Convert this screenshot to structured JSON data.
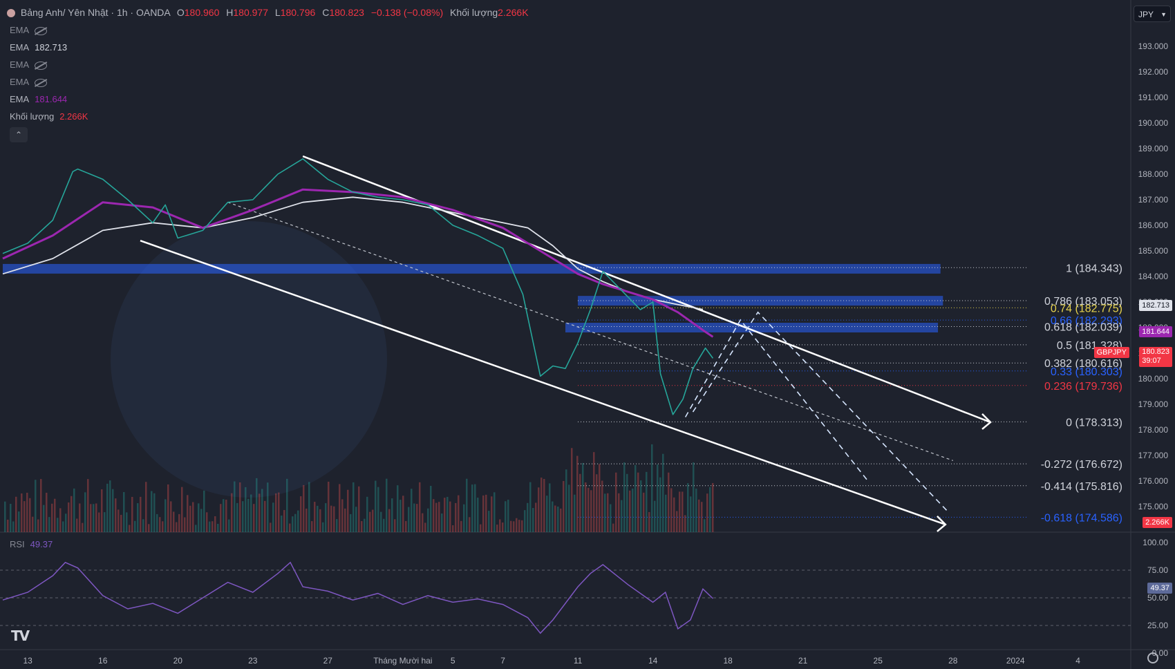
{
  "header": {
    "symbol": "Bảng Anh/ Yên Nhật · 1h · OANDA",
    "o_label": "O",
    "o": "180.960",
    "h_label": "H",
    "h": "180.977",
    "l_label": "L",
    "l": "180.796",
    "c_label": "C",
    "c": "180.823",
    "change": "−0.138 (−0.08%)",
    "vol_label": "Khối lượng",
    "vol": "2.266K"
  },
  "indicators": [
    {
      "name": "EMA",
      "value": "",
      "hidden": true
    },
    {
      "name": "EMA",
      "value": "182.713",
      "hidden": false
    },
    {
      "name": "EMA",
      "value": "",
      "hidden": true
    },
    {
      "name": "EMA",
      "value": "",
      "hidden": true
    },
    {
      "name": "EMA",
      "value": "181.644",
      "hidden": false
    },
    {
      "name": "Khối lượng",
      "value": "2.266K",
      "hidden": false
    }
  ],
  "currency": "JPY",
  "rsi": {
    "label": "RSI",
    "value": "49.37"
  },
  "price_tags": {
    "ema1": "182.713",
    "ema2": "181.644",
    "symbol": "GBPJPY",
    "last": "180.823",
    "countdown": "39:07",
    "volume": "2.266K",
    "rsi": "49.37"
  },
  "colors": {
    "bg": "#1e222d",
    "up": "#26a69a",
    "down": "#ef5350",
    "ema_purple": "#9c27b0",
    "ema_white": "#e0e3eb",
    "zone_blue": "#2962ff",
    "fib_red": "#f23645",
    "fib_blue": "#2962ff",
    "fib_yellow": "#e8d44d"
  },
  "chart_data": {
    "type": "line",
    "y_ticks": [
      193,
      192,
      191,
      190,
      189,
      188,
      187,
      186,
      185,
      184,
      183,
      182,
      181,
      180,
      179,
      178,
      177,
      176,
      175
    ],
    "y_tick_labels": [
      "193.000",
      "192.000",
      "191.000",
      "190.000",
      "189.000",
      "188.000",
      "187.000",
      "186.000",
      "185.000",
      "184.000",
      "183.000",
      "182.000",
      "181.000",
      "180.000",
      "179.000",
      "178.000",
      "177.000",
      "176.000",
      "175.000"
    ],
    "ylim": [
      174,
      194
    ],
    "x_ticks": [
      "13",
      "16",
      "20",
      "23",
      "27",
      "Tháng Mười hai",
      "5",
      "7",
      "11",
      "14",
      "18",
      "21",
      "25",
      "28",
      "2024",
      "4"
    ],
    "x_tick_positions": [
      0,
      3,
      6,
      9,
      12,
      15,
      17,
      19,
      22,
      25,
      28,
      31,
      34,
      37,
      39.5,
      42
    ],
    "xlim": [
      -1,
      44
    ],
    "price": {
      "x": [
        -1,
        0,
        1,
        1.8,
        2,
        3,
        4,
        5,
        5.5,
        6,
        7,
        8,
        9,
        10,
        11,
        11.5,
        12,
        13,
        14,
        15,
        16,
        17,
        18,
        19,
        19.8,
        20.5,
        21,
        21.5,
        22,
        22.5,
        23,
        24,
        24.5,
        25,
        25.3,
        25.8,
        26.2
      ],
      "y": [
        184.9,
        185.3,
        186.2,
        188.1,
        188.2,
        187.8,
        187.0,
        186.1,
        186.8,
        185.5,
        185.8,
        186.9,
        187.0,
        188.0,
        188.6,
        188.2,
        187.8,
        187.3,
        187.1,
        187.0,
        186.8,
        186.0,
        185.6,
        185.1,
        183.3,
        180.1,
        180.5,
        180.4,
        181.4,
        182.7,
        184.2,
        183.2,
        182.7,
        183.0,
        180.2,
        178.6,
        179.2
      ]
    },
    "price_tail": {
      "x": [
        26.2,
        26.6,
        27.1,
        27.4
      ],
      "y": [
        179.2,
        180.4,
        181.2,
        180.8
      ]
    },
    "ema_purple": {
      "x": [
        -1,
        1,
        3,
        5,
        7,
        9,
        11,
        13,
        15,
        17,
        19,
        21,
        22,
        23,
        24,
        25,
        26,
        27,
        27.4
      ],
      "y": [
        184.7,
        185.6,
        186.9,
        186.7,
        185.9,
        186.6,
        187.4,
        187.3,
        187.1,
        186.6,
        185.9,
        184.7,
        184.1,
        183.7,
        183.4,
        183.1,
        182.6,
        181.9,
        181.64
      ]
    },
    "ema_white": {
      "x": [
        -1,
        1,
        3,
        5,
        7,
        9,
        11,
        13,
        15,
        17,
        19,
        20,
        21,
        22,
        23,
        24,
        25,
        26,
        27
      ],
      "y": [
        184.1,
        184.7,
        185.8,
        186.1,
        185.9,
        186.3,
        186.9,
        187.1,
        186.9,
        186.5,
        186.1,
        185.9,
        185.2,
        184.3,
        183.8,
        183.4,
        183.1,
        182.9,
        182.71
      ]
    },
    "fib_levels": [
      {
        "ratio": "1",
        "price": "184.343",
        "y": 184.343
      },
      {
        "ratio": "0.786",
        "price": "183.053",
        "y": 183.053
      },
      {
        "ratio": "0.74",
        "price": "182.775",
        "y": 182.775
      },
      {
        "ratio": "0.66",
        "price": "182.293",
        "y": 182.293
      },
      {
        "ratio": "0.618",
        "price": "182.039",
        "y": 182.039
      },
      {
        "ratio": "0.5",
        "price": "181.328",
        "y": 181.328
      },
      {
        "ratio": "0.382",
        "price": "180.616",
        "y": 180.616
      },
      {
        "ratio": "0.33",
        "price": "180.303",
        "y": 180.303
      },
      {
        "ratio": "0.236",
        "price": "179.736",
        "y": 179.736
      },
      {
        "ratio": "0",
        "price": "178.313",
        "y": 178.313
      },
      {
        "ratio": "-0.272",
        "price": "176.672",
        "y": 176.672
      },
      {
        "ratio": "-0.414",
        "price": "175.816",
        "y": 175.816
      },
      {
        "ratio": "-0.618",
        "price": "174.586",
        "y": 174.586
      }
    ],
    "rsi_ticks": [
      "100.00",
      "75.00",
      "50.00",
      "25.00",
      "0.00"
    ],
    "rsi_levels": [
      100,
      75,
      50,
      25,
      0
    ],
    "rsi_series": {
      "x": [
        -1,
        0,
        1,
        1.5,
        2,
        3,
        4,
        5,
        6,
        7,
        8,
        9,
        10,
        10.5,
        11,
        12,
        13,
        14,
        15,
        16,
        17,
        18,
        19,
        20,
        20.5,
        21,
        22,
        22.5,
        23,
        24,
        25,
        25.5,
        26,
        26.5,
        27,
        27.4
      ],
      "y": [
        48,
        55,
        70,
        82,
        77,
        52,
        40,
        45,
        36,
        50,
        64,
        55,
        72,
        82,
        60,
        56,
        48,
        54,
        44,
        52,
        46,
        49,
        44,
        32,
        18,
        30,
        60,
        72,
        80,
        62,
        46,
        55,
        22,
        30,
        58,
        49.37
      ]
    }
  }
}
